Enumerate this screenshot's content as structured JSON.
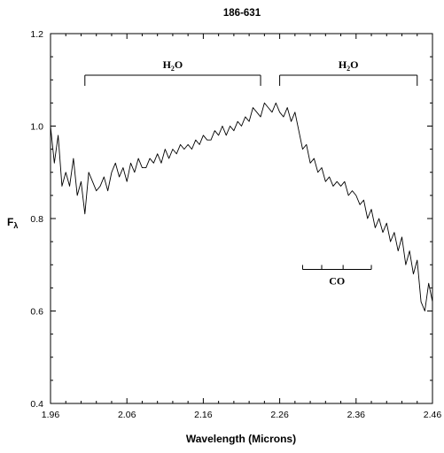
{
  "chart_data": {
    "type": "line",
    "title": "186-631",
    "xlabel": "Wavelength (Microns)",
    "ylabel": "F",
    "ylabel_sub": "λ",
    "xlim": [
      1.96,
      2.46
    ],
    "ylim": [
      0.4,
      1.2
    ],
    "x_ticks": [
      1.96,
      2.06,
      2.16,
      2.26,
      2.36,
      2.46
    ],
    "x_tick_labels": [
      "1.96",
      "2.06",
      "2.16",
      "2.26",
      "2.36",
      "2.46"
    ],
    "y_ticks": [
      0.4,
      0.6,
      0.8,
      1.0,
      1.2
    ],
    "y_tick_labels": [
      "0.4",
      "0.6",
      "0.8",
      "1.0",
      "1.2"
    ],
    "grid": false,
    "series": [
      {
        "x": [
          1.96,
          1.965,
          1.97,
          1.975,
          1.98,
          1.985,
          1.99,
          1.995,
          2.0,
          2.005,
          2.01,
          2.015,
          2.02,
          2.025,
          2.03,
          2.035,
          2.04,
          2.045,
          2.05,
          2.055,
          2.06,
          2.065,
          2.07,
          2.075,
          2.08,
          2.085,
          2.09,
          2.095,
          2.1,
          2.105,
          2.11,
          2.115,
          2.12,
          2.125,
          2.13,
          2.135,
          2.14,
          2.145,
          2.15,
          2.155,
          2.16,
          2.165,
          2.17,
          2.175,
          2.18,
          2.185,
          2.19,
          2.195,
          2.2,
          2.205,
          2.21,
          2.215,
          2.22,
          2.225,
          2.23,
          2.235,
          2.24,
          2.245,
          2.25,
          2.255,
          2.26,
          2.265,
          2.27,
          2.275,
          2.28,
          2.285,
          2.29,
          2.295,
          2.3,
          2.305,
          2.31,
          2.315,
          2.32,
          2.325,
          2.33,
          2.335,
          2.34,
          2.345,
          2.35,
          2.355,
          2.36,
          2.365,
          2.37,
          2.375,
          2.38,
          2.385,
          2.39,
          2.395,
          2.4,
          2.405,
          2.41,
          2.415,
          2.42,
          2.425,
          2.43,
          2.435,
          2.44,
          2.445,
          2.45,
          2.455,
          2.46
        ],
        "values": [
          1.0,
          0.92,
          0.98,
          0.87,
          0.9,
          0.87,
          0.93,
          0.85,
          0.88,
          0.81,
          0.9,
          0.88,
          0.86,
          0.87,
          0.89,
          0.86,
          0.9,
          0.92,
          0.89,
          0.91,
          0.88,
          0.92,
          0.9,
          0.93,
          0.91,
          0.91,
          0.93,
          0.92,
          0.94,
          0.92,
          0.95,
          0.93,
          0.95,
          0.94,
          0.96,
          0.95,
          0.96,
          0.95,
          0.97,
          0.96,
          0.98,
          0.97,
          0.97,
          0.99,
          0.98,
          1.0,
          0.98,
          1.0,
          0.99,
          1.01,
          1.0,
          1.02,
          1.01,
          1.04,
          1.03,
          1.02,
          1.05,
          1.04,
          1.03,
          1.05,
          1.03,
          1.02,
          1.04,
          1.01,
          1.03,
          0.99,
          0.95,
          0.96,
          0.92,
          0.93,
          0.9,
          0.91,
          0.88,
          0.89,
          0.87,
          0.88,
          0.87,
          0.88,
          0.85,
          0.86,
          0.85,
          0.83,
          0.84,
          0.8,
          0.82,
          0.78,
          0.8,
          0.77,
          0.79,
          0.75,
          0.77,
          0.73,
          0.76,
          0.7,
          0.73,
          0.68,
          0.71,
          0.62,
          0.6,
          0.66,
          0.62
        ]
      }
    ],
    "annotations": [
      {
        "label": "H",
        "sub": "2",
        "tail": "O",
        "x_start": 2.005,
        "x_end": 2.235,
        "y": 1.11
      },
      {
        "label": "H",
        "sub": "2",
        "tail": "O",
        "x_start": 2.26,
        "x_end": 2.44,
        "y": 1.11
      },
      {
        "label": "CO",
        "sub": "",
        "tail": "",
        "x_start": 2.29,
        "x_end": 2.38,
        "y": 0.69,
        "inner_ticks": [
          2.315,
          2.343
        ],
        "below": true
      }
    ]
  }
}
